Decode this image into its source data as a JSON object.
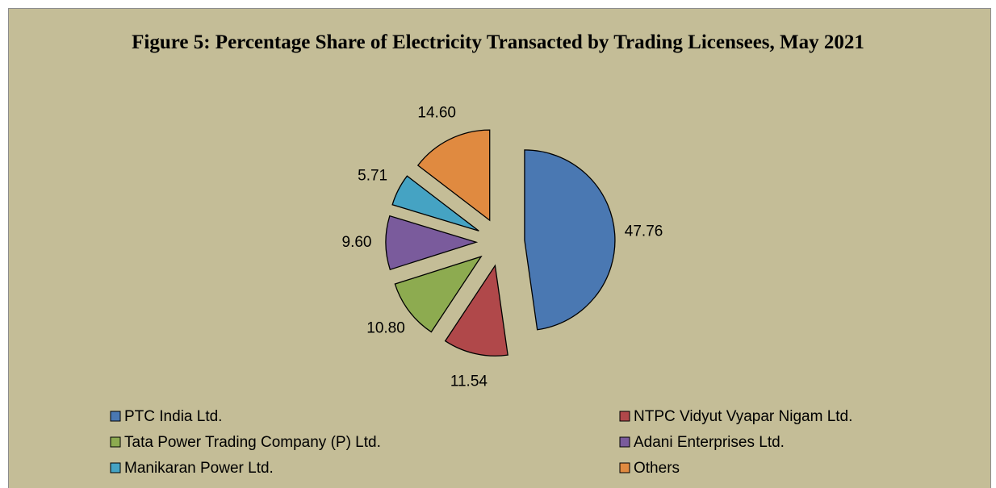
{
  "chart_data": {
    "type": "pie",
    "title": "Figure 5: Percentage Share of Electricity Transacted by Trading Licensees, May 2021",
    "categories": [
      "PTC India Ltd.",
      "NTPC Vidyut Vyapar Nigam Ltd.",
      "Tata Power Trading Company (P) Ltd.",
      "Adani Enterprises Ltd.",
      "Manikaran Power Ltd.",
      "Others"
    ],
    "values": [
      47.76,
      11.54,
      10.8,
      9.6,
      5.71,
      14.6
    ],
    "value_labels": [
      "47.76",
      "11.54",
      "10.80",
      "9.60",
      "5.71",
      "14.60"
    ],
    "colors": [
      "#4a78b2",
      "#b0484a",
      "#8dab50",
      "#7a5b9c",
      "#45a3c3",
      "#e08a40"
    ],
    "legend": "bottom"
  }
}
